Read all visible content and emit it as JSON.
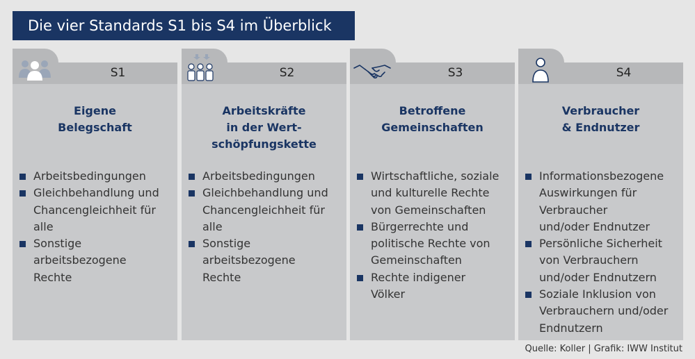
{
  "title": "Die vier Standards S1 bis S4 im Überblick",
  "colors": {
    "accent": "#1a3563",
    "card": "#c8c9cb",
    "band": "#b7b8ba",
    "background": "#e6e6e6"
  },
  "cards": [
    {
      "code": "S1",
      "icon": "group-people-icon",
      "title_lines": [
        "Eigene",
        "Belegschaft"
      ],
      "items": [
        [
          "Arbeitsbedingungen"
        ],
        [
          "Gleichbehandlung und",
          "Chancengleichheit für",
          "alle"
        ],
        [
          "Sonstige",
          "arbeitsbezogene",
          "Rechte"
        ]
      ]
    },
    {
      "code": "S2",
      "icon": "workers-chain-icon",
      "title_lines": [
        "Arbeitskräfte",
        "in der Wert-",
        "schöpfungskette"
      ],
      "items": [
        [
          "Arbeitsbedingungen"
        ],
        [
          "Gleichbehandlung und",
          "Chancengleichheit für",
          "alle"
        ],
        [
          "Sonstige",
          "arbeitsbezogene",
          "Rechte"
        ]
      ]
    },
    {
      "code": "S3",
      "icon": "handshake-icon",
      "title_lines": [
        "Betroffene",
        "Gemeinschaften"
      ],
      "items": [
        [
          "Wirtschaftliche, soziale",
          "und kulturelle Rechte",
          "von Gemeinschaften"
        ],
        [
          "Bürgerrechte und",
          "politische Rechte von",
          "Gemeinschaften"
        ],
        [
          "Rechte indigener",
          "Völker"
        ]
      ]
    },
    {
      "code": "S4",
      "icon": "consumer-person-icon",
      "title_lines": [
        "Verbraucher",
        "& Endnutzer"
      ],
      "items": [
        [
          "Informationsbezogene",
          "Auswirkungen für",
          "Verbraucher",
          "und/oder Endnutzer"
        ],
        [
          "Persönliche Sicherheit",
          "von Verbrauchern",
          "und/oder Endnutzern"
        ],
        [
          "Soziale Inklusion von",
          "Verbrauchern und/oder",
          "Endnutzern"
        ]
      ]
    }
  ],
  "source": "Quelle: Koller | Grafik: IWW Institut"
}
